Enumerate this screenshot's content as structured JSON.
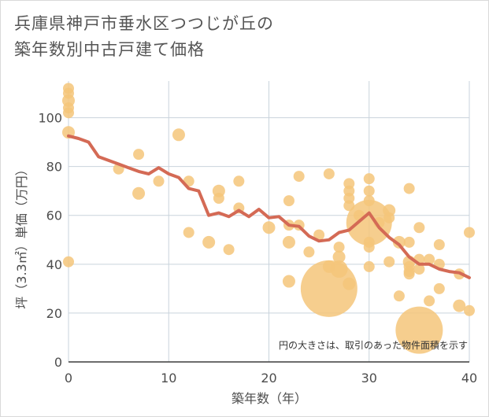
{
  "chart_data": {
    "type": "scatter",
    "title_lines": [
      "兵庫県神戸市垂水区つつじが丘の",
      "築年数別中古戸建て価格"
    ],
    "xlabel": "築年数（年）",
    "ylabel": "坪（3.3㎡）単価（万円）",
    "xlim": [
      0,
      40
    ],
    "ylim": [
      0,
      115
    ],
    "xticks": [
      0,
      10,
      20,
      30,
      40
    ],
    "yticks": [
      0,
      20,
      40,
      60,
      80,
      100
    ],
    "grid": true,
    "note": "円の大きさは、取引のあった物件面積を示す",
    "bubble_color": "#f5c67a",
    "line_color": "#d46a55",
    "points": [
      {
        "x": 0,
        "y": 112,
        "r": 7
      },
      {
        "x": 0,
        "y": 110,
        "r": 7
      },
      {
        "x": 0,
        "y": 107,
        "r": 8
      },
      {
        "x": 0,
        "y": 104,
        "r": 7
      },
      {
        "x": 0,
        "y": 102,
        "r": 7
      },
      {
        "x": 0,
        "y": 94,
        "r": 8
      },
      {
        "x": 0,
        "y": 41,
        "r": 7
      },
      {
        "x": 5,
        "y": 79,
        "r": 7
      },
      {
        "x": 7,
        "y": 85,
        "r": 7
      },
      {
        "x": 7,
        "y": 69,
        "r": 8
      },
      {
        "x": 9,
        "y": 74,
        "r": 7
      },
      {
        "x": 11,
        "y": 93,
        "r": 8
      },
      {
        "x": 12,
        "y": 74,
        "r": 7
      },
      {
        "x": 12,
        "y": 53,
        "r": 7
      },
      {
        "x": 14,
        "y": 49,
        "r": 8
      },
      {
        "x": 15,
        "y": 70,
        "r": 8
      },
      {
        "x": 15,
        "y": 67,
        "r": 7
      },
      {
        "x": 16,
        "y": 46,
        "r": 7
      },
      {
        "x": 17,
        "y": 74,
        "r": 7
      },
      {
        "x": 17,
        "y": 63,
        "r": 7
      },
      {
        "x": 20,
        "y": 55,
        "r": 8
      },
      {
        "x": 22,
        "y": 66,
        "r": 7
      },
      {
        "x": 22,
        "y": 56,
        "r": 7
      },
      {
        "x": 22,
        "y": 49,
        "r": 8
      },
      {
        "x": 22,
        "y": 33,
        "r": 8
      },
      {
        "x": 23,
        "y": 76,
        "r": 7
      },
      {
        "x": 23,
        "y": 56,
        "r": 7
      },
      {
        "x": 24,
        "y": 45,
        "r": 7
      },
      {
        "x": 25,
        "y": 52,
        "r": 7
      },
      {
        "x": 26,
        "y": 77,
        "r": 7
      },
      {
        "x": 26,
        "y": 39,
        "r": 8
      },
      {
        "x": 26,
        "y": 30,
        "r": 36
      },
      {
        "x": 27,
        "y": 47,
        "r": 7
      },
      {
        "x": 27,
        "y": 43,
        "r": 8
      },
      {
        "x": 27,
        "y": 38,
        "r": 11
      },
      {
        "x": 28,
        "y": 73,
        "r": 7
      },
      {
        "x": 28,
        "y": 70,
        "r": 7
      },
      {
        "x": 28,
        "y": 67,
        "r": 7
      },
      {
        "x": 28,
        "y": 64,
        "r": 7
      },
      {
        "x": 28,
        "y": 32,
        "r": 8
      },
      {
        "x": 29,
        "y": 60,
        "r": 7
      },
      {
        "x": 30,
        "y": 75,
        "r": 7
      },
      {
        "x": 30,
        "y": 70,
        "r": 7
      },
      {
        "x": 30,
        "y": 66,
        "r": 7
      },
      {
        "x": 30,
        "y": 57,
        "r": 29
      },
      {
        "x": 30,
        "y": 49,
        "r": 7
      },
      {
        "x": 30,
        "y": 47,
        "r": 7
      },
      {
        "x": 30,
        "y": 39,
        "r": 7
      },
      {
        "x": 31,
        "y": 57,
        "r": 7
      },
      {
        "x": 32,
        "y": 62,
        "r": 8
      },
      {
        "x": 32,
        "y": 59,
        "r": 7
      },
      {
        "x": 32,
        "y": 41,
        "r": 7
      },
      {
        "x": 33,
        "y": 49,
        "r": 8
      },
      {
        "x": 33,
        "y": 27,
        "r": 7
      },
      {
        "x": 34,
        "y": 71,
        "r": 7
      },
      {
        "x": 34,
        "y": 49,
        "r": 7
      },
      {
        "x": 34,
        "y": 41,
        "r": 8
      },
      {
        "x": 34,
        "y": 39,
        "r": 7
      },
      {
        "x": 34,
        "y": 37,
        "r": 7
      },
      {
        "x": 34,
        "y": 36,
        "r": 7
      },
      {
        "x": 35,
        "y": 55,
        "r": 7
      },
      {
        "x": 35,
        "y": 42,
        "r": 7
      },
      {
        "x": 35,
        "y": 38,
        "r": 7
      },
      {
        "x": 35,
        "y": 13,
        "r": 30
      },
      {
        "x": 36,
        "y": 42,
        "r": 7
      },
      {
        "x": 36,
        "y": 25,
        "r": 7
      },
      {
        "x": 37,
        "y": 48,
        "r": 7
      },
      {
        "x": 37,
        "y": 40,
        "r": 7
      },
      {
        "x": 37,
        "y": 30,
        "r": 7
      },
      {
        "x": 39,
        "y": 36,
        "r": 7
      },
      {
        "x": 39,
        "y": 23,
        "r": 8
      },
      {
        "x": 40,
        "y": 53,
        "r": 7
      },
      {
        "x": 40,
        "y": 21,
        "r": 7
      }
    ],
    "trend": {
      "x": [
        0,
        1,
        2,
        3,
        4,
        5,
        6,
        7,
        8,
        9,
        10,
        11,
        12,
        13,
        14,
        15,
        16,
        17,
        18,
        19,
        20,
        21,
        22,
        23,
        24,
        25,
        26,
        27,
        28,
        29,
        30,
        31,
        32,
        33,
        34,
        35,
        36,
        37,
        38,
        39,
        40
      ],
      "y": [
        92.5,
        91.5,
        90,
        84,
        82.5,
        81,
        79.5,
        78,
        77,
        79.5,
        77,
        75.5,
        71,
        70,
        60,
        61,
        59.5,
        62,
        59.5,
        62.5,
        59,
        59.5,
        56,
        55.5,
        51.5,
        49.5,
        50,
        53,
        54,
        57.5,
        61,
        55,
        51,
        48,
        43,
        40,
        40,
        38,
        37,
        36.5,
        34.5
      ]
    }
  }
}
